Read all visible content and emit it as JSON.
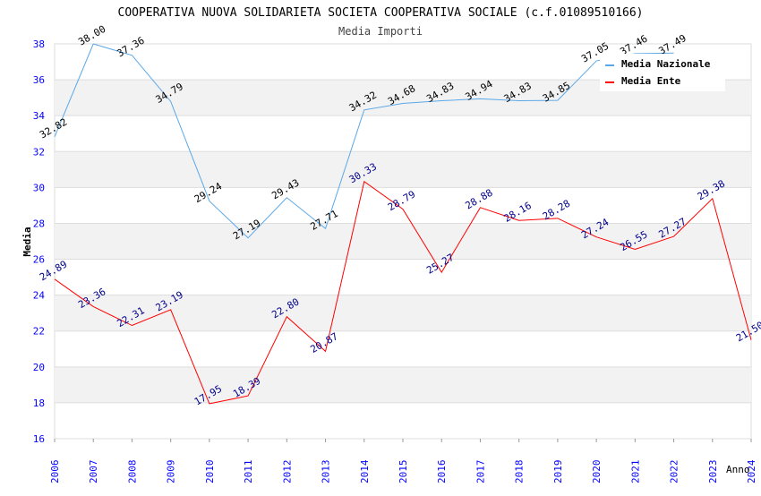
{
  "chart_data": {
    "type": "line",
    "title": "COOPERATIVA NUOVA SOLIDARIETA SOCIETA COOPERATIVA SOCIALE (c.f.01089510166)",
    "subtitle": "Media Importi",
    "xlabel": "Anno",
    "ylabel": "Media",
    "ylim": [
      16,
      38
    ],
    "yticks": [
      16,
      18,
      20,
      22,
      24,
      26,
      28,
      30,
      32,
      34,
      36,
      38
    ],
    "x": [
      2006,
      2007,
      2008,
      2009,
      2010,
      2011,
      2012,
      2013,
      2014,
      2015,
      2016,
      2017,
      2018,
      2019,
      2020,
      2021,
      2022,
      2023,
      2024
    ],
    "series": [
      {
        "name": "Media Nazionale",
        "color": "#5ba8e8",
        "label_color": "#000000",
        "values": [
          32.82,
          38.0,
          37.36,
          34.79,
          29.24,
          27.19,
          29.43,
          27.71,
          34.32,
          34.68,
          34.83,
          34.94,
          34.83,
          34.85,
          37.05,
          37.46,
          37.49,
          null,
          null
        ]
      },
      {
        "name": "Media Ente",
        "color": "#ff0000",
        "label_color": "#00008b",
        "values": [
          24.89,
          23.36,
          22.31,
          23.19,
          17.95,
          18.39,
          22.8,
          20.87,
          30.33,
          28.79,
          25.27,
          28.88,
          28.16,
          28.28,
          27.24,
          26.55,
          27.27,
          29.38,
          21.5
        ]
      }
    ],
    "grid": true,
    "legend": "top-right"
  }
}
